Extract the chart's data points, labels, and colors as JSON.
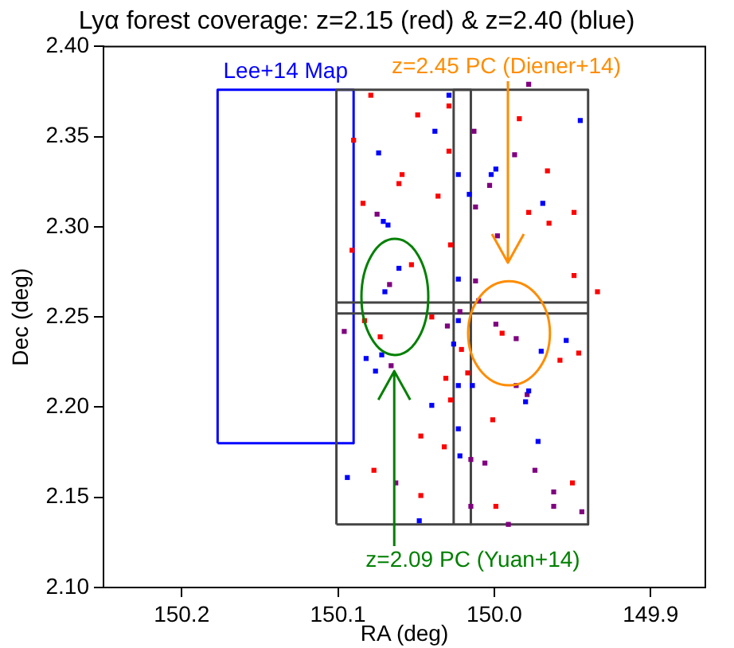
{
  "chart_data": {
    "type": "scatter",
    "title": "Lyα forest coverage: z=2.15 (red) & z=2.40 (blue)",
    "xlabel": "RA (deg)",
    "ylabel": "Dec (deg)",
    "xlim": [
      150.25,
      149.865
    ],
    "xticks": [
      150.2,
      150.1,
      {
        "value": 150.0,
        "label": "150.0"
      },
      149.9
    ],
    "ylim": [
      2.1,
      2.4
    ],
    "yticks": [
      {
        "value": 2.1,
        "label": "2.10"
      },
      2.15,
      {
        "value": 2.2,
        "label": "2.20"
      },
      2.25,
      {
        "value": 2.3,
        "label": "2.30"
      },
      2.35,
      {
        "value": 2.4,
        "label": "2.40"
      }
    ],
    "grid": false,
    "legend": false,
    "marker": "square",
    "series": [
      {
        "type": "line",
        "marker": "none",
        "color": "#444444",
        "x": [
          150.101,
          150.101,
          149.94,
          149.94
        ],
        "values": [
          2.135,
          2.376,
          2.376,
          2.135
        ]
      },
      {
        "type": "line",
        "marker": "none",
        "color": "#444444",
        "x": [
          150.101,
          149.94
        ],
        "values": [
          2.135,
          2.135
        ]
      },
      {
        "type": "line",
        "marker": "none",
        "color": "#444444",
        "x": [
          150.026,
          150.026,
          150.015,
          150.015
        ],
        "values": [
          2.135,
          2.376,
          2.376,
          2.135
        ]
      },
      {
        "type": "line",
        "marker": "none",
        "color": "#444444",
        "x": [
          150.101,
          149.94
        ],
        "values": [
          2.258,
          2.258
        ]
      },
      {
        "type": "line",
        "marker": "none",
        "color": "#444444",
        "x": [
          150.101,
          149.94
        ],
        "values": [
          2.252,
          2.252
        ]
      },
      {
        "type": "line",
        "marker": "none",
        "name": "Lee+14 Map",
        "color": "#0000ff",
        "x": [
          150.177,
          150.177,
          150.09,
          150.09
        ],
        "values": [
          2.18,
          2.376,
          2.376,
          2.18
        ]
      },
      {
        "type": "line",
        "marker": "none",
        "color": "#0000ff",
        "x": [
          150.177,
          150.09
        ],
        "values": [
          2.18,
          2.18
        ]
      },
      {
        "color": "#ff0000",
        "x": [
          150.079,
          150.09,
          150.049,
          150.029,
          150.029,
          150.059,
          150.061,
          150.084,
          150.036,
          150.091,
          150.028,
          150.053,
          149.984,
          149.966,
          149.978,
          149.965,
          149.949,
          149.949,
          149.934,
          150.04,
          150.083,
          150.073,
          150.021,
          149.995,
          149.958,
          149.946,
          150.017,
          150.031,
          150.028,
          150.001,
          150.047,
          150.032,
          150.077,
          149.95,
          150.047,
          149.999
        ],
        "values": [
          2.373,
          2.348,
          2.362,
          2.367,
          2.342,
          2.329,
          2.324,
          2.313,
          2.317,
          2.287,
          2.29,
          2.279,
          2.36,
          2.331,
          2.308,
          2.302,
          2.308,
          2.273,
          2.264,
          2.25,
          2.248,
          2.239,
          2.232,
          2.241,
          2.226,
          2.23,
          2.219,
          2.216,
          2.204,
          2.193,
          2.184,
          2.178,
          2.165,
          2.158,
          2.151,
          2.145
        ]
      },
      {
        "color": "#0000ff",
        "x": [
          150.029,
          150.038,
          150.074,
          150.071,
          150.068,
          150.061,
          150.07,
          150.023,
          150.016,
          149.999,
          150.002,
          149.969,
          149.945,
          150.023,
          150.023,
          150.026,
          150.072,
          150.076,
          150.082,
          150.04,
          150.023,
          150.014,
          149.97,
          149.954,
          149.978,
          149.98,
          150.023,
          149.972,
          150.022,
          150.094,
          150.048
        ],
        "values": [
          2.373,
          2.353,
          2.341,
          2.303,
          2.301,
          2.277,
          2.264,
          2.329,
          2.318,
          2.332,
          2.329,
          2.313,
          2.359,
          2.271,
          2.248,
          2.235,
          2.229,
          2.22,
          2.227,
          2.201,
          2.212,
          2.212,
          2.231,
          2.237,
          2.209,
          2.203,
          2.188,
          2.181,
          2.173,
          2.161,
          2.137
        ]
      },
      {
        "color": "#800080",
        "x": [
          150.013,
          149.987,
          150.003,
          150.012,
          150.075,
          150.067,
          149.998,
          150.012,
          149.978,
          150.03,
          150.022,
          150.01,
          150.096,
          149.999,
          149.986,
          149.986,
          149.979,
          150.006,
          149.974,
          149.962,
          149.962,
          149.944,
          150.063,
          150.015,
          149.991,
          150.015,
          150.066
        ],
        "values": [
          2.353,
          2.34,
          2.323,
          2.311,
          2.307,
          2.268,
          2.295,
          2.27,
          2.379,
          2.245,
          2.253,
          2.259,
          2.242,
          2.246,
          2.238,
          2.212,
          2.207,
          2.169,
          2.165,
          2.153,
          2.145,
          2.142,
          2.158,
          2.145,
          2.135,
          2.171,
          2.223
        ]
      }
    ],
    "annotations": [
      "z=2.45 PC (Diener+14)",
      {
        "text": "z=2.09 PC (Yuan+14)",
        "x": 150.064,
        "y": 2.22
      }
    ]
  }
}
